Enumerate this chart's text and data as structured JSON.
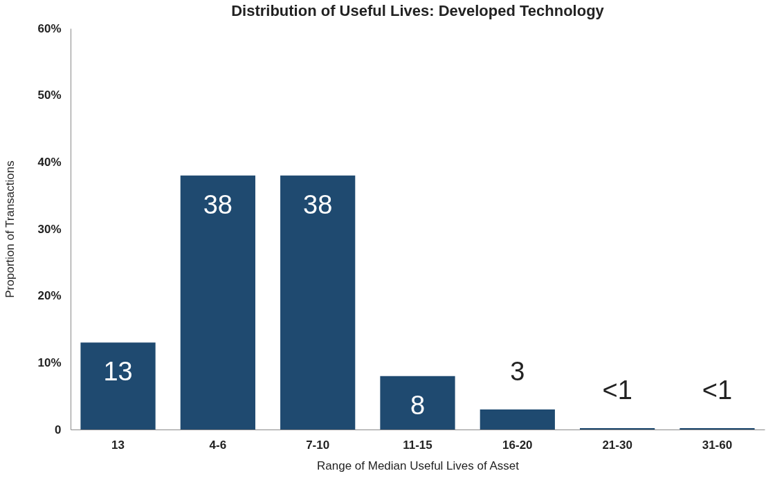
{
  "chart_data": {
    "type": "bar",
    "title": "Distribution of Useful Lives: Developed Technology",
    "xlabel": "Range of Median Useful Lives of Asset",
    "ylabel": "Proportion of Transactions",
    "categories": [
      "13",
      "4-6",
      "7-10",
      "11-15",
      "16-20",
      "21-30",
      "31-60"
    ],
    "values": [
      13,
      38,
      38,
      8,
      3,
      0.2,
      0.2
    ],
    "value_labels": [
      "13",
      "38",
      "38",
      "8",
      "3",
      "<1",
      "<1"
    ],
    "color": "#1f4a70",
    "ylim": [
      0,
      60
    ],
    "yticks": [
      0,
      {
        "value": 10,
        "label": "10%"
      },
      {
        "value": 20,
        "label": "20%"
      },
      {
        "value": 30,
        "label": "30%"
      },
      {
        "value": 40,
        "label": "40%"
      },
      {
        "value": 50,
        "label": "50%"
      },
      {
        "value": 60,
        "label": "60%"
      }
    ],
    "grid": false
  }
}
